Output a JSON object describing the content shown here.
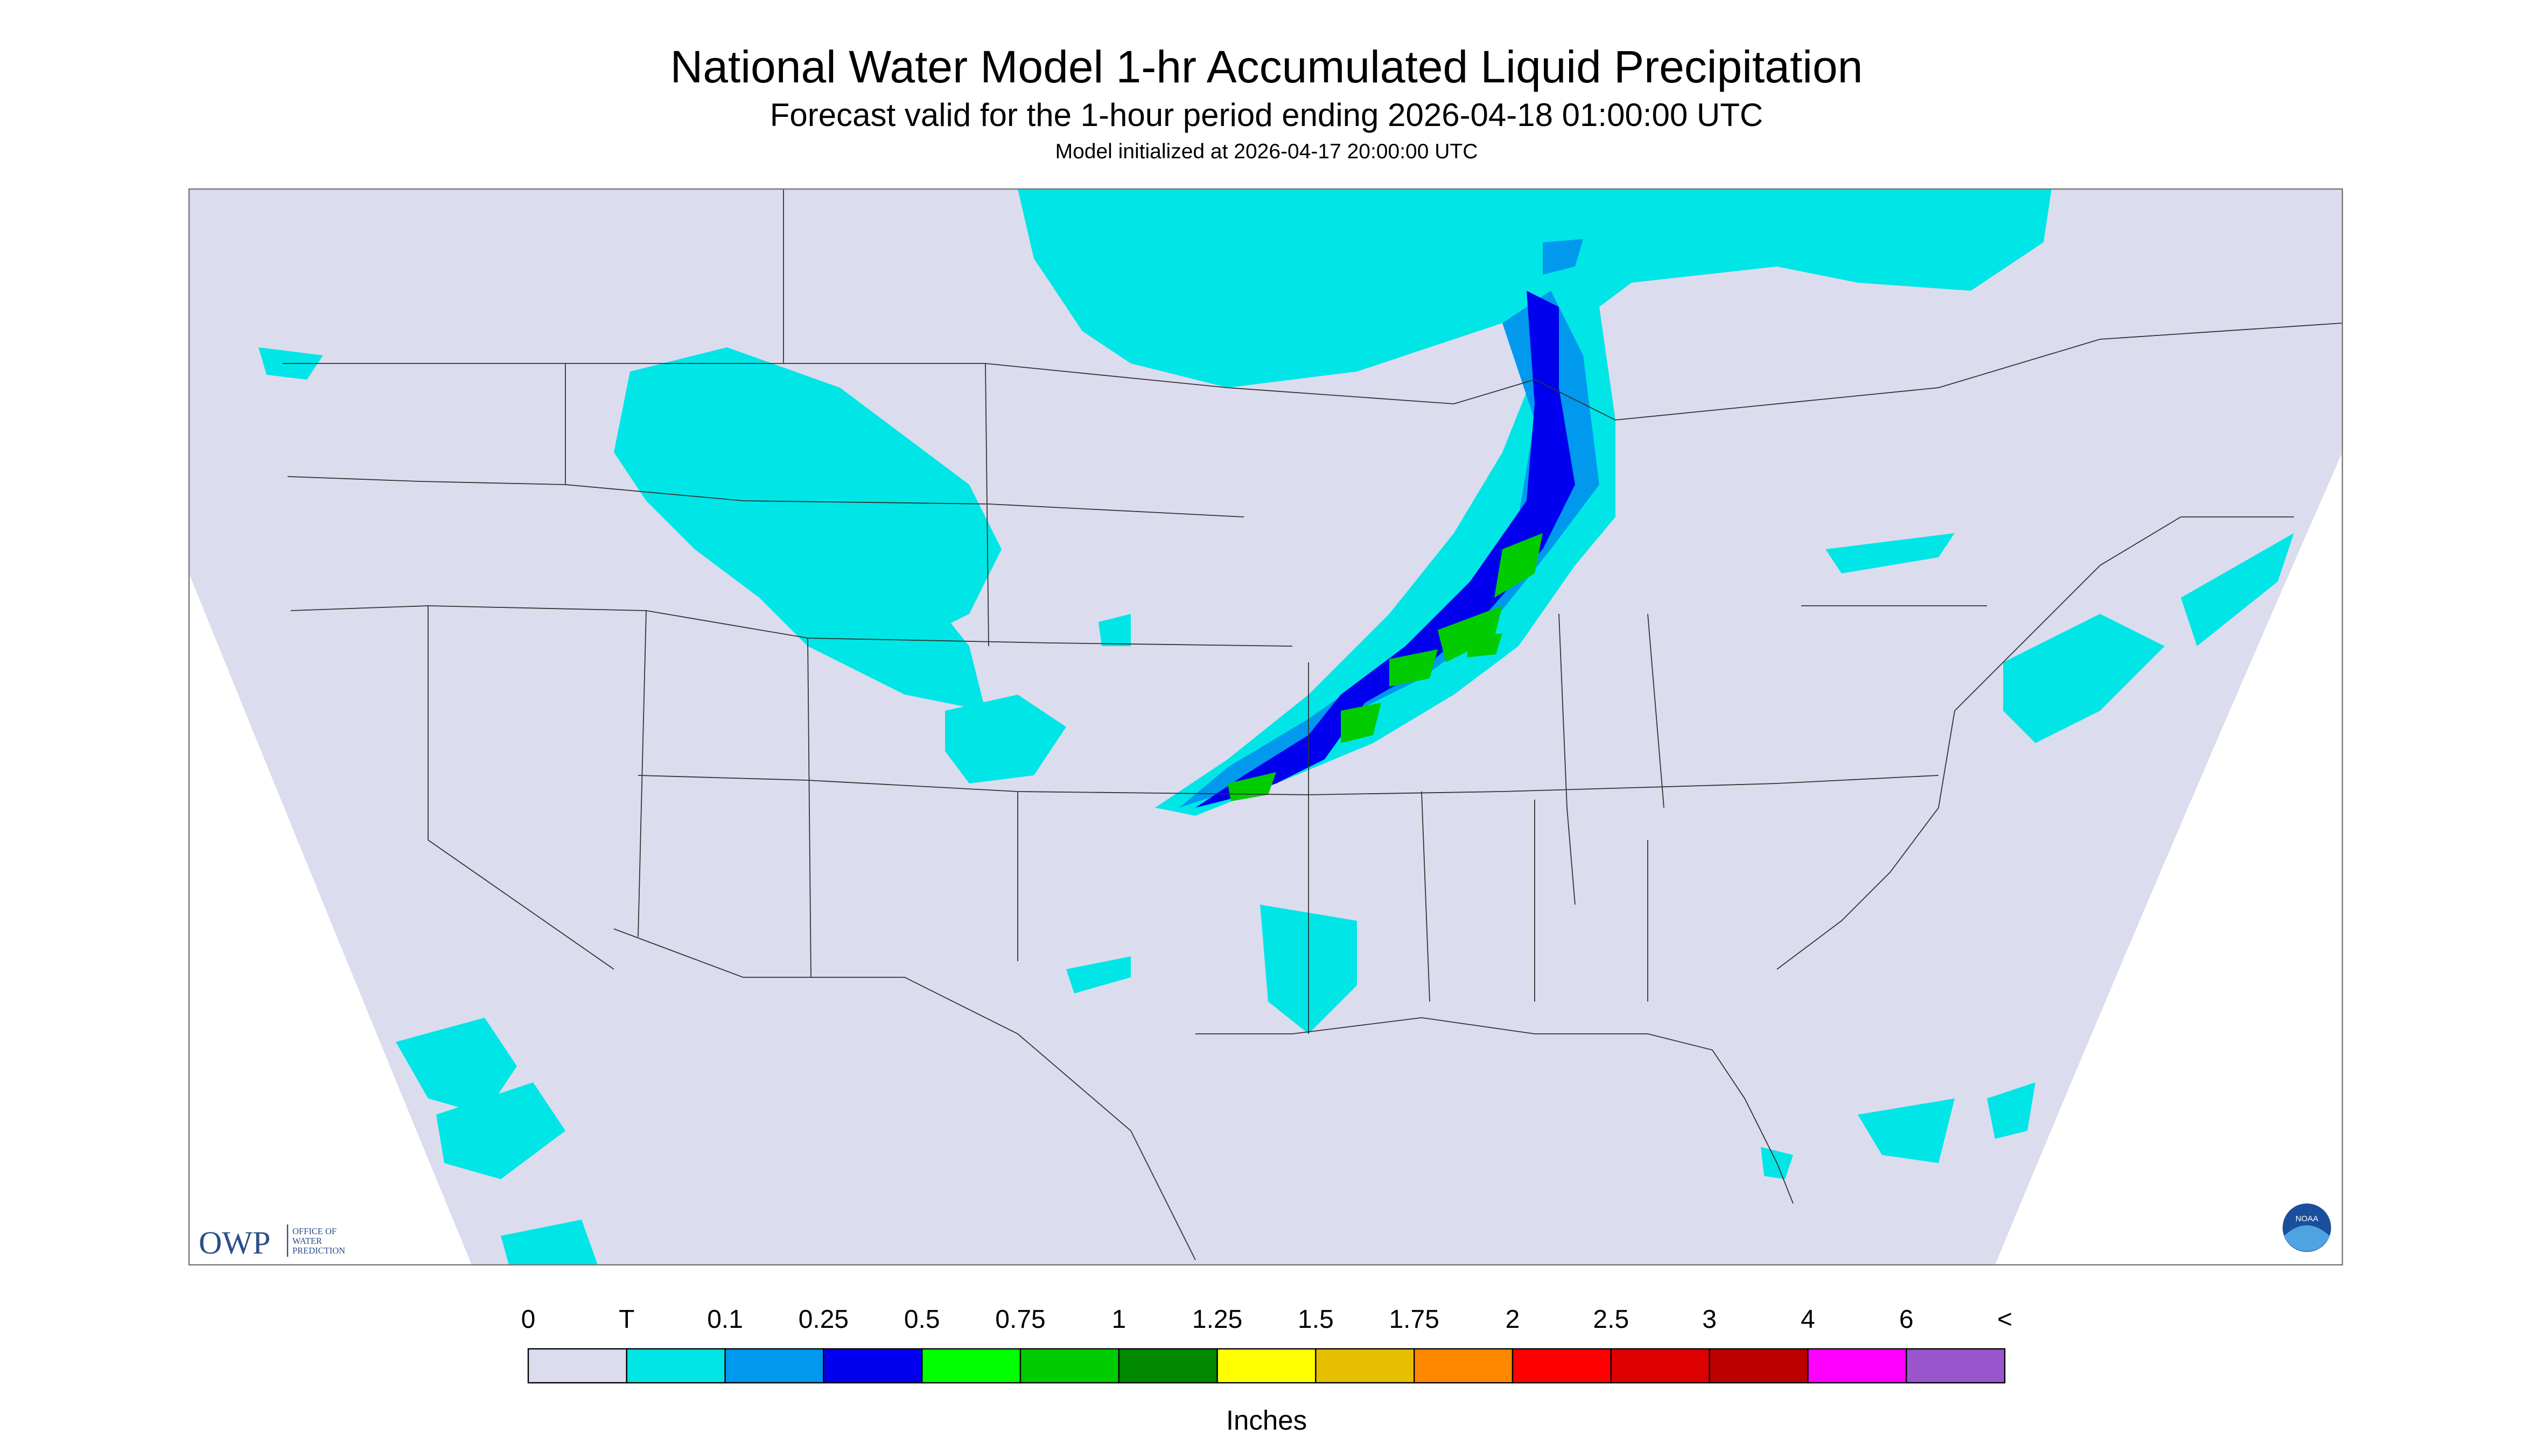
{
  "header": {
    "title": "National Water Model 1-hr Accumulated Liquid Precipitation",
    "subtitle": "Forecast valid for the 1-hour period ending 2026-04-18 01:00:00 UTC",
    "initialized": "Model initialized at 2026-04-17 20:00:00 UTC"
  },
  "legend": {
    "labels": [
      "0",
      "T",
      "0.1",
      "0.25",
      "0.5",
      "0.75",
      "1",
      "1.25",
      "1.5",
      "1.75",
      "2",
      "2.5",
      "3",
      "4",
      "6",
      "<"
    ],
    "colors": [
      "#dcdcef",
      "#00e6e6",
      "#0099ee",
      "#0000ee",
      "#00ff00",
      "#00cc00",
      "#008800",
      "#ffff00",
      "#e6c000",
      "#ff8800",
      "#ff0000",
      "#dd0000",
      "#bb0000",
      "#ff00ff",
      "#9955cc"
    ],
    "unit": "Inches"
  },
  "logos": {
    "owp": "OWP",
    "owp_name": [
      "OFFICE OF",
      "WATER",
      "PREDICTION"
    ],
    "noaa": "NOAA"
  }
}
